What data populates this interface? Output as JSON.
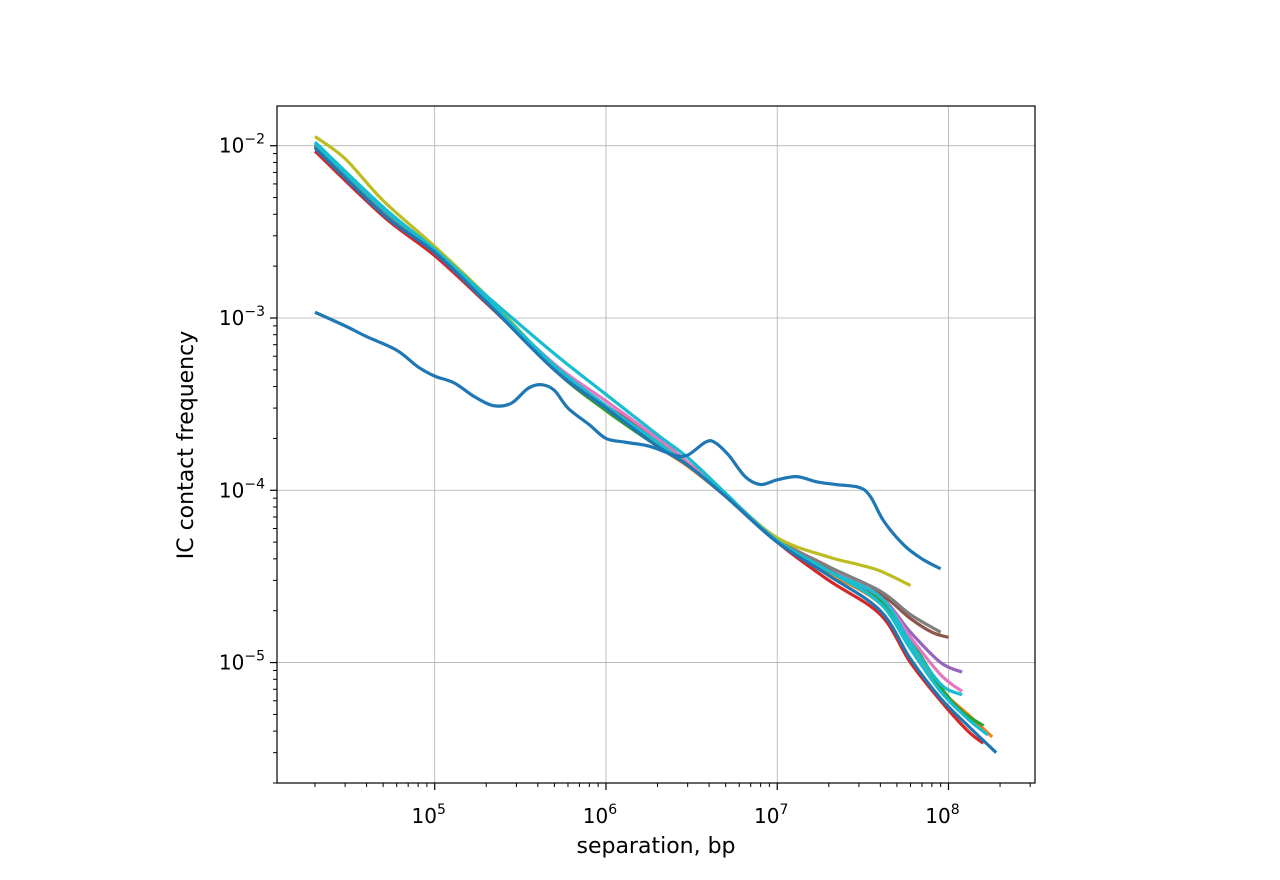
{
  "chart_data": {
    "type": "line",
    "title": "",
    "xlabel": "separation, bp",
    "ylabel": "IC contact frequency",
    "xscale": "log",
    "yscale": "log",
    "xlim": [
      12000,
      320000000
    ],
    "ylim": [
      2e-06,
      0.017
    ],
    "grid": true,
    "legend": "none",
    "x_ticks": [
      {
        "value": 100000,
        "base": "10",
        "exp": "5"
      },
      {
        "value": 1000000,
        "base": "10",
        "exp": "6"
      },
      {
        "value": 10000000,
        "base": "10",
        "exp": "7"
      },
      {
        "value": 100000000,
        "base": "10",
        "exp": "8"
      }
    ],
    "y_ticks": [
      {
        "value": 1e-05,
        "base": "10",
        "exp": "−5"
      },
      {
        "value": 0.0001,
        "base": "10",
        "exp": "−4"
      },
      {
        "value": 0.001,
        "base": "10",
        "exp": "−3"
      },
      {
        "value": 0.01,
        "base": "10",
        "exp": "−2"
      }
    ],
    "series": [
      {
        "color": "#1f77b4",
        "points": [
          [
            20000,
            0.00108
          ],
          [
            30000,
            0.0009
          ],
          [
            40000,
            0.00078
          ],
          [
            60000,
            0.00065
          ],
          [
            80000,
            0.00052
          ],
          [
            100000,
            0.00046
          ],
          [
            130000,
            0.00042
          ],
          [
            170000,
            0.00035
          ],
          [
            220000,
            0.00031
          ],
          [
            280000,
            0.00032
          ],
          [
            350000,
            0.00039
          ],
          [
            420000,
            0.00041
          ],
          [
            500000,
            0.00038
          ],
          [
            600000,
            0.0003
          ],
          [
            800000,
            0.00024
          ],
          [
            1000000,
            0.0002
          ],
          [
            1300000,
            0.00019
          ],
          [
            1800000,
            0.00018
          ],
          [
            2500000,
            0.00016
          ],
          [
            3000000,
            0.00016
          ],
          [
            3800000,
            0.00019
          ],
          [
            4300000,
            0.00019
          ],
          [
            5200000,
            0.00016
          ],
          [
            6500000,
            0.00012
          ],
          [
            8000000,
            0.000108
          ],
          [
            10000000,
            0.000115
          ],
          [
            13000000,
            0.00012
          ],
          [
            17000000,
            0.000112
          ],
          [
            22000000,
            0.000108
          ],
          [
            30000000,
            0.000104
          ],
          [
            35000000,
            9.2e-05
          ],
          [
            42000000,
            6.6e-05
          ],
          [
            55000000,
            4.8e-05
          ],
          [
            70000000,
            4e-05
          ],
          [
            90000000,
            3.5e-05
          ]
        ]
      },
      {
        "color": "#ff7f0e",
        "points": [
          [
            20000,
            0.0102
          ],
          [
            50000,
            0.0042
          ],
          [
            100000,
            0.0024
          ],
          [
            200000,
            0.00126
          ],
          [
            500000,
            0.00052
          ],
          [
            1000000,
            0.0003
          ],
          [
            2000000,
            0.00018
          ],
          [
            3000000,
            0.000138
          ],
          [
            5000000,
            9.2e-05
          ],
          [
            10000000,
            5e-05
          ],
          [
            20000000,
            3.3e-05
          ],
          [
            40000000,
            2.2e-05
          ],
          [
            60000000,
            1.25e-05
          ],
          [
            90000000,
            7e-06
          ],
          [
            130000000,
            5e-06
          ],
          [
            180000000,
            3.7e-06
          ]
        ]
      },
      {
        "color": "#2ca02c",
        "points": [
          [
            20000,
            0.0101
          ],
          [
            50000,
            0.0042
          ],
          [
            100000,
            0.0024
          ],
          [
            200000,
            0.00128
          ],
          [
            500000,
            0.0005
          ],
          [
            1000000,
            0.00029
          ],
          [
            2000000,
            0.00018
          ],
          [
            3000000,
            0.00014
          ],
          [
            5000000,
            9.3e-05
          ],
          [
            10000000,
            5.1e-05
          ],
          [
            20000000,
            3.4e-05
          ],
          [
            40000000,
            2.3e-05
          ],
          [
            60000000,
            1.35e-05
          ],
          [
            90000000,
            7.2e-06
          ],
          [
            120000000,
            5.2e-06
          ],
          [
            160000000,
            4.3e-06
          ]
        ]
      },
      {
        "color": "#d62728",
        "points": [
          [
            20000,
            0.0093
          ],
          [
            50000,
            0.0039
          ],
          [
            100000,
            0.0023
          ],
          [
            200000,
            0.00122
          ],
          [
            500000,
            0.00052
          ],
          [
            1000000,
            0.00031
          ],
          [
            2000000,
            0.0002
          ],
          [
            3000000,
            0.000145
          ],
          [
            5000000,
            9.5e-05
          ],
          [
            10000000,
            5e-05
          ],
          [
            20000000,
            3e-05
          ],
          [
            40000000,
            1.9e-05
          ],
          [
            60000000,
            1e-05
          ],
          [
            90000000,
            6e-06
          ],
          [
            130000000,
            4e-06
          ],
          [
            160000000,
            3.4e-06
          ]
        ]
      },
      {
        "color": "#9467bd",
        "points": [
          [
            20000,
            0.0098
          ],
          [
            50000,
            0.0041
          ],
          [
            100000,
            0.0024
          ],
          [
            200000,
            0.00125
          ],
          [
            500000,
            0.0005
          ],
          [
            1000000,
            0.0003
          ],
          [
            2000000,
            0.00019
          ],
          [
            3000000,
            0.00014
          ],
          [
            5000000,
            9.3e-05
          ],
          [
            10000000,
            5e-05
          ],
          [
            20000000,
            3.4e-05
          ],
          [
            40000000,
            2.4e-05
          ],
          [
            60000000,
            1.5e-05
          ],
          [
            90000000,
            1e-05
          ],
          [
            120000000,
            8.8e-06
          ]
        ]
      },
      {
        "color": "#8c564b",
        "points": [
          [
            20000,
            0.0099
          ],
          [
            50000,
            0.0041
          ],
          [
            100000,
            0.0024
          ],
          [
            200000,
            0.00125
          ],
          [
            500000,
            0.0005
          ],
          [
            1000000,
            0.0003
          ],
          [
            2000000,
            0.00019
          ],
          [
            3000000,
            0.00014
          ],
          [
            5000000,
            9.3e-05
          ],
          [
            10000000,
            5.1e-05
          ],
          [
            20000000,
            3.5e-05
          ],
          [
            40000000,
            2.5e-05
          ],
          [
            60000000,
            1.8e-05
          ],
          [
            80000000,
            1.5e-05
          ],
          [
            100000000,
            1.4e-05
          ]
        ]
      },
      {
        "color": "#e377c2",
        "points": [
          [
            20000,
            0.01
          ],
          [
            50000,
            0.0042
          ],
          [
            100000,
            0.0024
          ],
          [
            200000,
            0.00126
          ],
          [
            500000,
            0.00054
          ],
          [
            1000000,
            0.00033
          ],
          [
            2000000,
            0.0002
          ],
          [
            3000000,
            0.000145
          ],
          [
            5000000,
            9.4e-05
          ],
          [
            10000000,
            5.2e-05
          ],
          [
            20000000,
            3.6e-05
          ],
          [
            40000000,
            2.4e-05
          ],
          [
            60000000,
            1.4e-05
          ],
          [
            90000000,
            8.5e-06
          ],
          [
            120000000,
            6.8e-06
          ]
        ]
      },
      {
        "color": "#7f7f7f",
        "points": [
          [
            20000,
            0.01
          ],
          [
            50000,
            0.0042
          ],
          [
            100000,
            0.0024
          ],
          [
            200000,
            0.00126
          ],
          [
            500000,
            0.00051
          ],
          [
            1000000,
            0.0003
          ],
          [
            2000000,
            0.00019
          ],
          [
            3000000,
            0.00014
          ],
          [
            5000000,
            9.4e-05
          ],
          [
            10000000,
            5.2e-05
          ],
          [
            20000000,
            3.6e-05
          ],
          [
            40000000,
            2.6e-05
          ],
          [
            60000000,
            1.9e-05
          ],
          [
            90000000,
            1.5e-05
          ]
        ]
      },
      {
        "color": "#bcbd22",
        "points": [
          [
            20000,
            0.0113
          ],
          [
            30000,
            0.0084
          ],
          [
            50000,
            0.0048
          ],
          [
            100000,
            0.0026
          ],
          [
            200000,
            0.00135
          ],
          [
            500000,
            0.00052
          ],
          [
            1000000,
            0.0003
          ],
          [
            2000000,
            0.00019
          ],
          [
            3000000,
            0.00014
          ],
          [
            5000000,
            9.3e-05
          ],
          [
            10000000,
            5.3e-05
          ],
          [
            20000000,
            4.1e-05
          ],
          [
            30000000,
            3.7e-05
          ],
          [
            40000000,
            3.4e-05
          ],
          [
            60000000,
            2.8e-05
          ]
        ]
      },
      {
        "color": "#17becf",
        "points": [
          [
            20000,
            0.0105
          ],
          [
            50000,
            0.0044
          ],
          [
            100000,
            0.0025
          ],
          [
            200000,
            0.00135
          ],
          [
            500000,
            0.00062
          ],
          [
            1000000,
            0.00036
          ],
          [
            2000000,
            0.00021
          ],
          [
            3000000,
            0.000155
          ],
          [
            5000000,
            9.6e-05
          ],
          [
            10000000,
            5e-05
          ],
          [
            20000000,
            3.4e-05
          ],
          [
            40000000,
            2.4e-05
          ],
          [
            60000000,
            1.3e-05
          ],
          [
            90000000,
            7.5e-06
          ],
          [
            120000000,
            6.5e-06
          ]
        ]
      },
      {
        "color": "#17becf",
        "points": [
          [
            20000,
            0.0103
          ],
          [
            50000,
            0.0043
          ],
          [
            100000,
            0.0025
          ],
          [
            200000,
            0.0013
          ],
          [
            500000,
            0.00053
          ],
          [
            1000000,
            0.00031
          ],
          [
            2000000,
            0.00019
          ],
          [
            3000000,
            0.00014
          ],
          [
            5000000,
            9.4e-05
          ],
          [
            10000000,
            5.1e-05
          ],
          [
            20000000,
            3.4e-05
          ],
          [
            40000000,
            2.2e-05
          ],
          [
            60000000,
            1.2e-05
          ],
          [
            90000000,
            6.8e-06
          ],
          [
            130000000,
            4.7e-06
          ],
          [
            170000000,
            3.8e-06
          ]
        ]
      },
      {
        "color": "#1f77b4",
        "points": [
          [
            20000,
            0.0097
          ],
          [
            50000,
            0.004
          ],
          [
            100000,
            0.0024
          ],
          [
            200000,
            0.00124
          ],
          [
            500000,
            0.0005
          ],
          [
            1000000,
            0.0003
          ],
          [
            2000000,
            0.00018
          ],
          [
            3000000,
            0.00014
          ],
          [
            5000000,
            9.2e-05
          ],
          [
            10000000,
            5e-05
          ],
          [
            20000000,
            3.2e-05
          ],
          [
            40000000,
            2e-05
          ],
          [
            60000000,
            1.05e-05
          ],
          [
            90000000,
            6.2e-06
          ],
          [
            130000000,
            4.3e-06
          ],
          [
            190000000,
            3e-06
          ]
        ]
      }
    ]
  }
}
